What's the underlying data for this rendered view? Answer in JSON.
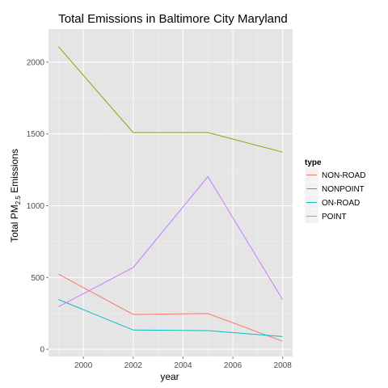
{
  "chart_data": {
    "type": "line",
    "title": "Total Emissions in Baltimore City Maryland",
    "xlabel": "year",
    "ylabel_main": "Total PM",
    "ylabel_sub": "2.5",
    "ylabel_tail": " Emissions",
    "x": [
      1999,
      2002,
      2005,
      2008
    ],
    "xlim": [
      1998.6,
      2008.4
    ],
    "ylim": [
      -50,
      2230
    ],
    "x_ticks": [
      2000,
      2002,
      2004,
      2006,
      2008
    ],
    "x_tick_labels": [
      "2000",
      "2002",
      "2004",
      "2006",
      "2008"
    ],
    "y_ticks": [
      0,
      500,
      1000,
      1500,
      2000
    ],
    "y_tick_labels": [
      "0",
      "500",
      "1000",
      "1500",
      "2000"
    ],
    "grid": true,
    "legend_position": "right",
    "legend_title": "type",
    "series": [
      {
        "name": "NON-ROAD",
        "color": "#F8766D",
        "values": [
          522.9,
          242.7,
          248.9,
          55.8
        ]
      },
      {
        "name": "NONPOINT",
        "color": "#7CAE00",
        "values": [
          2107.6,
          1509.5,
          1509.5,
          1373.2
        ]
      },
      {
        "name": "ON-ROAD",
        "color": "#00BFC4",
        "values": [
          346.8,
          134.3,
          130.4,
          88.3
        ]
      },
      {
        "name": "POINT",
        "color": "#C77CFF",
        "values": [
          296.8,
          569.3,
          1202.5,
          344.98
        ]
      }
    ]
  }
}
